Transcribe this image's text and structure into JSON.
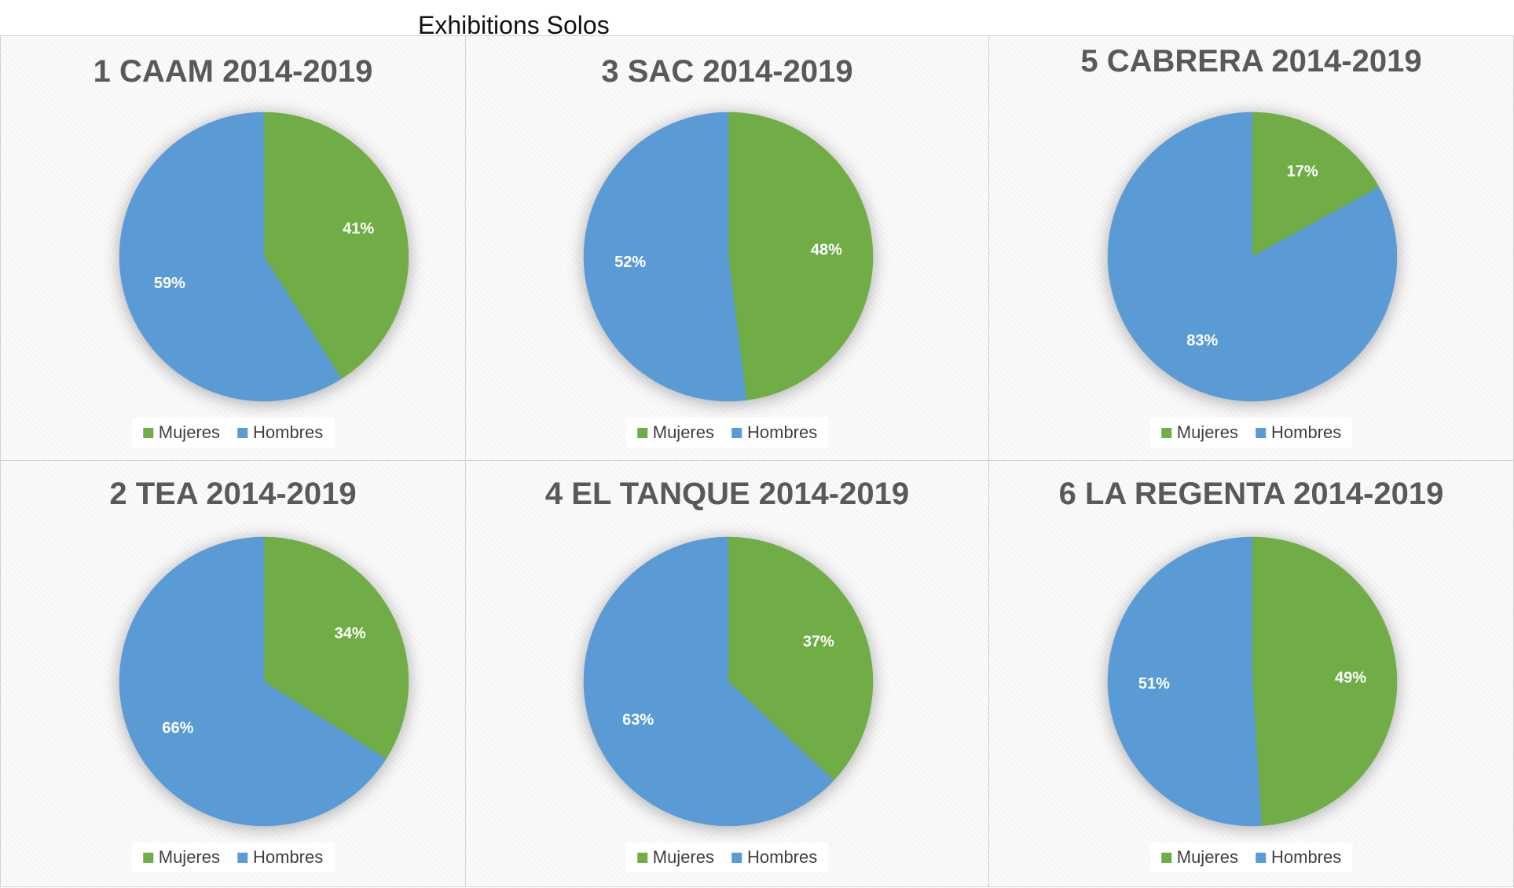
{
  "page": {
    "title": "Exhibitions Solos"
  },
  "colors": {
    "mujeres": "#70AD47",
    "hombres": "#5B9BD5"
  },
  "chart_data": [
    {
      "type": "pie",
      "title": "1 CAAM 2014-2019",
      "categories": [
        "Mujeres",
        "Hombres"
      ],
      "values": [
        41,
        59
      ],
      "labels": [
        "41%",
        "59%"
      ]
    },
    {
      "type": "pie",
      "title": "3 SAC 2014-2019",
      "categories": [
        "Mujeres",
        "Hombres"
      ],
      "values": [
        48,
        52
      ],
      "labels": [
        "48%",
        "52%"
      ]
    },
    {
      "type": "pie",
      "title": "5 CABRERA 2014-2019",
      "categories": [
        "Mujeres",
        "Hombres"
      ],
      "values": [
        17,
        83
      ],
      "labels": [
        "17%",
        "83%"
      ]
    },
    {
      "type": "pie",
      "title": "2 TEA 2014-2019",
      "categories": [
        "Mujeres",
        "Hombres"
      ],
      "values": [
        34,
        66
      ],
      "labels": [
        "34%",
        "66%"
      ]
    },
    {
      "type": "pie",
      "title": "4 EL TANQUE 2014-2019",
      "categories": [
        "Mujeres",
        "Hombres"
      ],
      "values": [
        37,
        63
      ],
      "labels": [
        "37%",
        "63%"
      ]
    },
    {
      "type": "pie",
      "title": "6 LA REGENTA 2014-2019",
      "categories": [
        "Mujeres",
        "Hombres"
      ],
      "values": [
        49,
        51
      ],
      "labels": [
        "49%",
        "51%"
      ]
    }
  ]
}
